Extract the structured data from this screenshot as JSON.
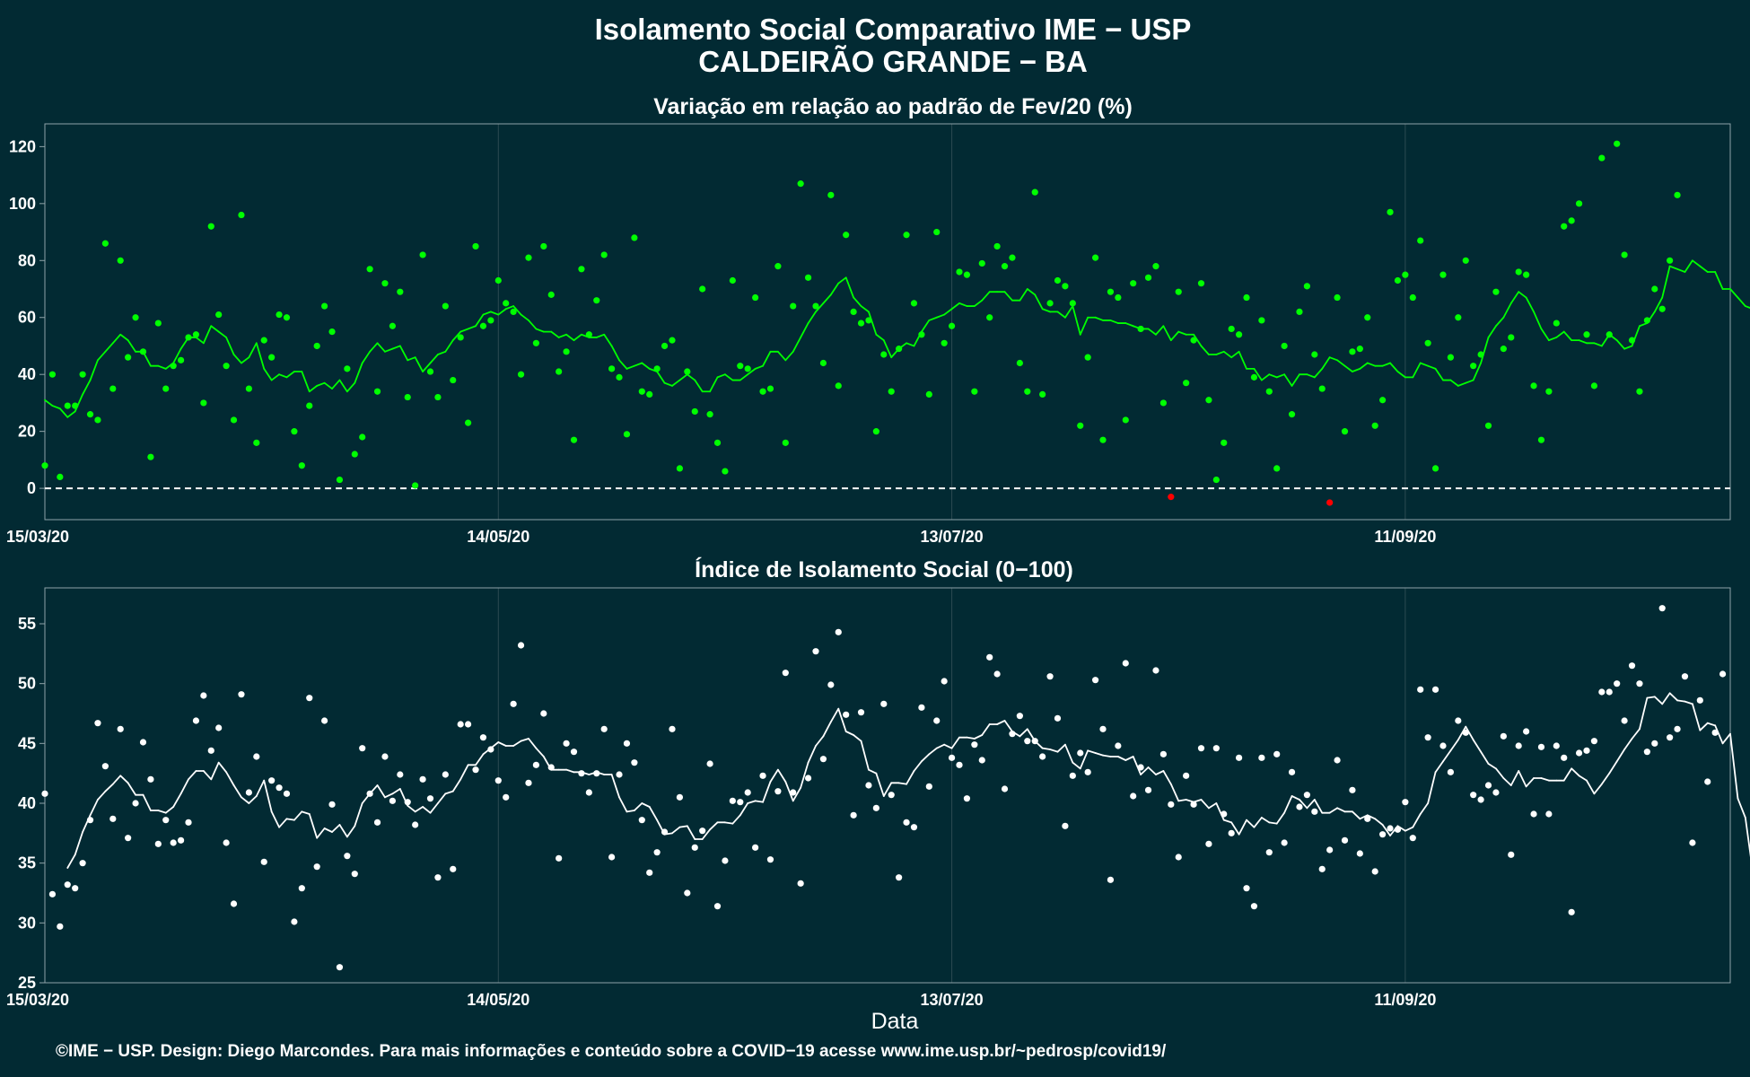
{
  "title_line1": "Isolamento Social Comparativo IME − USP",
  "title_line2": "CALDEIRÃO GRANDE − BA",
  "xlabel": "Data",
  "footer": "©IME − USP. Design: Diego Marcondes. Para mais informações e conteúdo sobre a COVID−19 acesse www.ime.usp.br/~pedrosp/covid19/",
  "colors": {
    "background": "#022a33",
    "panel_border": "#8fa3a8",
    "grid": "#2c4a52",
    "positive": "#00ff00",
    "negative": "#ff0000",
    "index": "#ffffff"
  },
  "x_ticks": [
    "15/03/20",
    "14/05/20",
    "13/07/20",
    "11/09/20"
  ],
  "chart_data": [
    {
      "type": "scatter",
      "title": "Variação em relação ao padrão de Fev/20 (%)",
      "x_start": "15/03/20",
      "x_end": "24/10/20",
      "xlim": [
        "15/03/20",
        "24/10/20"
      ],
      "ylim": [
        -11,
        128
      ],
      "y_ticks": [
        0,
        20,
        40,
        60,
        80,
        100,
        120
      ],
      "reference_line": 0,
      "point_color_rule": "green if >= 0, red if < 0",
      "values": [
        8,
        40,
        4,
        29,
        29,
        40,
        26,
        24,
        86,
        35,
        80,
        46,
        60,
        48,
        11,
        58,
        35,
        43,
        45,
        53,
        54,
        30,
        92,
        61,
        43,
        24,
        96,
        35,
        16,
        52,
        46,
        61,
        60,
        20,
        8,
        29,
        50,
        64,
        55,
        3,
        42,
        12,
        18,
        77,
        34,
        72,
        57,
        69,
        32,
        1,
        82,
        41,
        32,
        64,
        38,
        53,
        23,
        85,
        57,
        59,
        73,
        65,
        62,
        40,
        81,
        51,
        85,
        68,
        41,
        48,
        17,
        77,
        54,
        66,
        82,
        42,
        39,
        19,
        88,
        34,
        33,
        42,
        50,
        52,
        7,
        41,
        27,
        70,
        26,
        16,
        6,
        73,
        43,
        42,
        67,
        34,
        35,
        78,
        16,
        64,
        107,
        74,
        64,
        44,
        103,
        36,
        89,
        62,
        58,
        59,
        20,
        47,
        34,
        49,
        89,
        65,
        54,
        33,
        90,
        51,
        57,
        76,
        75,
        34,
        79,
        60,
        85,
        78,
        81,
        44,
        34,
        104,
        33,
        65,
        73,
        71,
        65,
        22,
        46,
        81,
        17,
        69,
        67,
        24,
        72,
        56,
        74,
        78,
        30,
        -3,
        69,
        37,
        52,
        72,
        31,
        3,
        16,
        56,
        54,
        67,
        39,
        59,
        34,
        7,
        50,
        26,
        62,
        71,
        47,
        35,
        -5,
        67,
        20,
        48,
        49,
        60,
        22,
        31,
        97,
        73,
        75,
        67,
        87,
        51,
        7,
        75,
        46,
        60,
        80,
        43,
        47,
        22,
        69,
        49,
        53,
        76,
        75,
        36,
        17,
        34,
        58,
        92,
        94,
        100,
        54,
        36,
        116,
        54,
        121,
        82,
        52,
        34,
        59,
        70,
        63,
        80,
        103
      ],
      "moving_average": [
        31,
        29,
        28,
        25,
        27,
        33,
        38,
        45,
        48,
        51,
        54,
        52,
        48,
        48,
        43,
        43,
        42,
        44,
        49,
        53,
        53,
        51,
        57,
        55,
        53,
        47,
        44,
        46,
        51,
        42,
        38,
        40,
        39,
        41,
        41,
        34,
        36,
        37,
        35,
        38,
        34,
        37,
        44,
        48,
        51,
        48,
        49,
        50,
        45,
        46,
        41,
        44,
        47,
        48,
        52,
        55,
        56,
        57,
        61,
        62,
        61,
        63,
        64,
        61,
        59,
        56,
        55,
        55,
        53,
        54,
        52,
        54,
        53,
        53,
        54,
        50,
        45,
        42,
        43,
        44,
        42,
        41,
        37,
        36,
        38,
        40,
        38,
        34,
        34,
        39,
        40,
        38,
        38,
        40,
        42,
        43,
        48,
        48,
        45,
        48,
        53,
        58,
        62,
        65,
        68,
        72,
        74,
        67,
        64,
        62,
        54,
        52,
        46,
        49,
        51,
        50,
        55,
        59,
        60,
        61,
        63,
        65,
        64,
        64,
        66,
        69,
        69,
        69,
        66,
        66,
        70,
        68,
        63,
        62,
        62,
        60,
        64,
        54,
        60,
        60,
        59,
        59,
        58,
        58,
        57,
        56,
        56,
        54,
        57,
        52,
        55,
        54,
        54,
        50,
        47,
        47,
        48,
        46,
        48,
        42,
        42,
        38,
        40,
        39,
        40,
        36,
        40,
        40,
        39,
        42,
        46,
        45,
        43,
        41,
        42,
        44,
        43,
        43,
        44,
        41,
        39,
        39,
        44,
        43,
        42,
        38,
        38,
        36,
        37,
        38,
        44,
        53,
        57,
        60,
        65,
        69,
        67,
        62,
        56,
        52,
        53,
        55,
        52,
        52,
        51,
        51,
        50,
        54,
        52,
        49,
        50,
        57,
        58,
        62,
        67,
        78,
        77,
        76,
        80,
        78,
        76,
        76,
        70,
        70,
        67,
        64,
        63
      ]
    },
    {
      "type": "scatter",
      "title": "Índice de Isolamento Social (0−100)",
      "x_start": "15/03/20",
      "x_end": "24/10/20",
      "xlim": [
        "15/03/20",
        "24/10/20"
      ],
      "ylim": [
        25,
        58
      ],
      "y_ticks": [
        25,
        30,
        35,
        40,
        45,
        50,
        55
      ],
      "values": [
        40.8,
        32.4,
        29.7,
        33.2,
        32.9,
        35.0,
        38.6,
        46.7,
        43.1,
        38.7,
        46.2,
        37.1,
        40.0,
        45.1,
        42.0,
        36.6,
        38.6,
        36.7,
        36.9,
        38.4,
        46.9,
        49.0,
        44.4,
        46.3,
        36.7,
        31.6,
        49.1,
        40.9,
        43.9,
        35.1,
        41.9,
        41.3,
        40.8,
        30.1,
        32.9,
        48.8,
        34.7,
        46.9,
        39.9,
        26.3,
        35.6,
        34.1,
        44.6,
        40.8,
        38.4,
        43.9,
        40.2,
        42.4,
        40.1,
        38.2,
        42.0,
        40.4,
        33.8,
        42.4,
        34.5,
        46.6,
        46.6,
        42.8,
        45.5,
        44.5,
        41.9,
        40.5,
        48.3,
        53.2,
        41.7,
        43.2,
        47.5,
        43.0,
        35.4,
        45.0,
        44.3,
        42.5,
        40.9,
        42.5,
        46.2,
        35.5,
        42.4,
        45.0,
        43.4,
        38.6,
        34.2,
        35.9,
        37.6,
        46.2,
        40.5,
        32.5,
        36.3,
        37.7,
        43.3,
        31.4,
        35.2,
        40.2,
        40.1,
        40.9,
        36.3,
        42.3,
        35.3,
        41.0,
        50.9,
        40.9,
        33.3,
        42.1,
        52.7,
        43.7,
        49.9,
        54.3,
        47.4,
        39.0,
        47.6,
        41.5,
        39.6,
        48.3,
        40.7,
        33.8,
        38.4,
        38.0,
        48.0,
        41.4,
        46.9,
        50.2,
        43.8,
        43.2,
        40.4,
        44.9,
        43.6,
        52.2,
        50.8,
        41.2,
        45.8,
        47.3,
        45.2,
        45.2,
        43.9,
        50.6,
        47.1,
        38.1,
        42.3,
        44.2,
        42.6,
        50.3,
        46.2,
        33.6,
        44.8,
        51.7,
        40.6,
        43.0,
        41.1,
        51.1,
        44.1,
        39.9,
        35.5,
        42.3,
        39.9,
        44.6,
        36.6,
        44.6,
        39.1,
        37.5,
        43.8,
        32.9,
        31.4,
        43.8,
        35.9,
        44.1,
        36.7,
        42.6,
        39.7,
        40.7,
        39.3,
        34.5,
        36.1,
        43.6,
        36.9,
        41.1,
        35.8,
        38.7,
        34.3,
        37.4,
        37.9,
        37.8,
        40.1,
        37.1,
        49.5,
        45.5,
        49.5,
        44.8,
        42.6,
        46.9,
        45.9,
        40.7,
        40.3,
        41.5,
        40.9,
        45.6,
        35.7,
        44.8,
        46.0,
        39.1,
        44.7,
        39.1,
        44.8,
        43.8,
        30.9,
        44.2,
        44.4,
        45.2,
        49.3,
        49.3,
        50.0,
        46.9,
        51.5,
        50.0,
        44.3,
        45.0,
        56.3,
        45.5,
        46.2,
        50.6,
        36.7,
        48.6,
        41.8,
        45.9,
        50.8
      ],
      "moving_average": [
        null,
        null,
        null,
        34.6,
        35.7,
        37.6,
        39.0,
        40.3,
        41.0,
        41.6,
        42.3,
        41.7,
        40.7,
        40.7,
        39.4,
        39.4,
        39.2,
        39.7,
        40.8,
        42.0,
        42.7,
        42.7,
        42.0,
        43.4,
        42.6,
        41.5,
        40.5,
        40.0,
        40.6,
        41.9,
        39.3,
        38.0,
        38.7,
        38.6,
        39.3,
        39.1,
        37.1,
        37.9,
        37.6,
        38.2,
        37.2,
        38.1,
        40.0,
        40.8,
        41.5,
        40.5,
        40.8,
        41.2,
        39.8,
        39.3,
        39.7,
        39.2,
        40.0,
        40.8,
        41.0,
        42.0,
        43.2,
        43.2,
        44.1,
        44.6,
        45.1,
        44.8,
        44.8,
        45.2,
        45.4,
        44.6,
        43.9,
        42.8,
        42.8,
        42.8,
        42.6,
        42.6,
        42.4,
        42.6,
        42.4,
        42.4,
        40.5,
        39.3,
        39.4,
        40.0,
        39.7,
        38.6,
        37.4,
        37.5,
        38.0,
        38.1,
        37.0,
        37.0,
        37.8,
        38.4,
        38.4,
        38.3,
        39.0,
        40.0,
        40.2,
        40.1,
        41.8,
        42.8,
        41.8,
        40.2,
        41.3,
        43.4,
        44.8,
        45.6,
        46.8,
        47.9,
        46.0,
        45.7,
        45.2,
        42.8,
        42.5,
        40.6,
        41.7,
        41.7,
        41.6,
        42.7,
        43.5,
        44.1,
        44.6,
        44.9,
        44.6,
        45.5,
        45.5,
        45.4,
        45.7,
        46.6,
        46.6,
        46.9,
        46.0,
        45.6,
        46.2,
        45.2,
        44.6,
        44.5,
        44.3,
        44.9,
        43.4,
        42.9,
        44.4,
        44.2,
        44.0,
        43.9,
        43.9,
        43.6,
        43.9,
        42.4,
        43.0,
        42.4,
        42.7,
        41.6,
        40.2,
        40.3,
        40.1,
        40.3,
        39.6,
        40.0,
        38.6,
        38.4,
        37.4,
        38.6,
        38.0,
        38.8,
        38.4,
        38.3,
        39.2,
        40.6,
        40.3,
        39.6,
        40.3,
        39.2,
        39.2,
        39.6,
        39.3,
        39.3,
        38.7,
        39.0,
        38.7,
        38.2,
        37.3,
        38.1,
        37.7,
        38.0,
        39.1,
        40.0,
        42.6,
        43.5,
        44.4,
        45.3,
        46.4,
        45.3,
        44.3,
        43.3,
        42.9,
        42.1,
        41.5,
        42.7,
        41.4,
        42.1,
        42.1,
        41.9,
        41.9,
        41.9,
        42.9,
        42.3,
        41.9,
        40.8,
        41.6,
        42.5,
        43.5,
        44.5,
        45.4,
        46.2,
        48.8,
        48.9,
        48.3,
        49.2,
        48.6,
        48.5,
        48.3,
        46.1,
        46.7,
        46.5,
        45.0,
        45.8,
        40.4,
        38.8,
        34.2
      ]
    }
  ]
}
